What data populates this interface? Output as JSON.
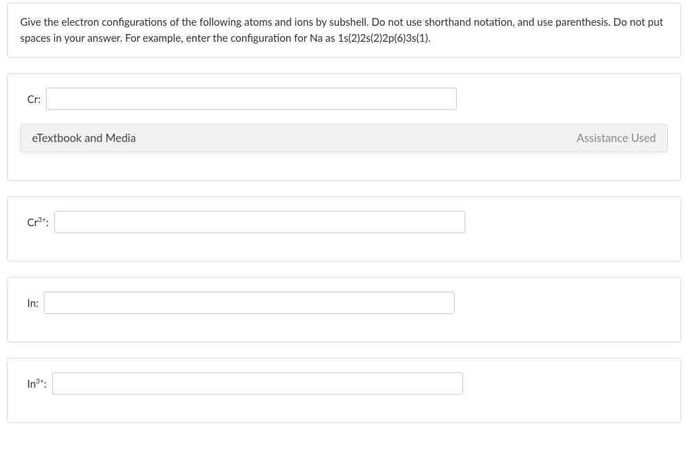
{
  "instruction": {
    "text": "Give the electron configurations of the following atoms and ions by subshell. Do not use shorthand notation, and use parenthesis. Do not put spaces in your answer. For example, enter the configuration for Na as 1s(2)2s(2)2p(6)3s(1)."
  },
  "questions": [
    {
      "label_base": "Cr",
      "label_sup": "",
      "label_suffix": ":",
      "value": "",
      "has_etextbook_bar": true
    },
    {
      "label_base": "Cr",
      "label_sup": "3+",
      "label_suffix": ":",
      "value": "",
      "has_etextbook_bar": false
    },
    {
      "label_base": "In",
      "label_sup": "",
      "label_suffix": ":",
      "value": "",
      "has_etextbook_bar": false
    },
    {
      "label_base": "In",
      "label_sup": "3+",
      "label_suffix": ":",
      "value": "",
      "has_etextbook_bar": false
    }
  ],
  "etextbook": {
    "left_label": "eTextbook and Media",
    "right_label": "Assistance Used"
  },
  "colors": {
    "panel_border": "#dddddd",
    "text_primary": "#333333",
    "text_muted": "#888888",
    "input_border": "#cccccc",
    "bar_bg": "#f2f2f2",
    "page_bg": "#ffffff"
  }
}
